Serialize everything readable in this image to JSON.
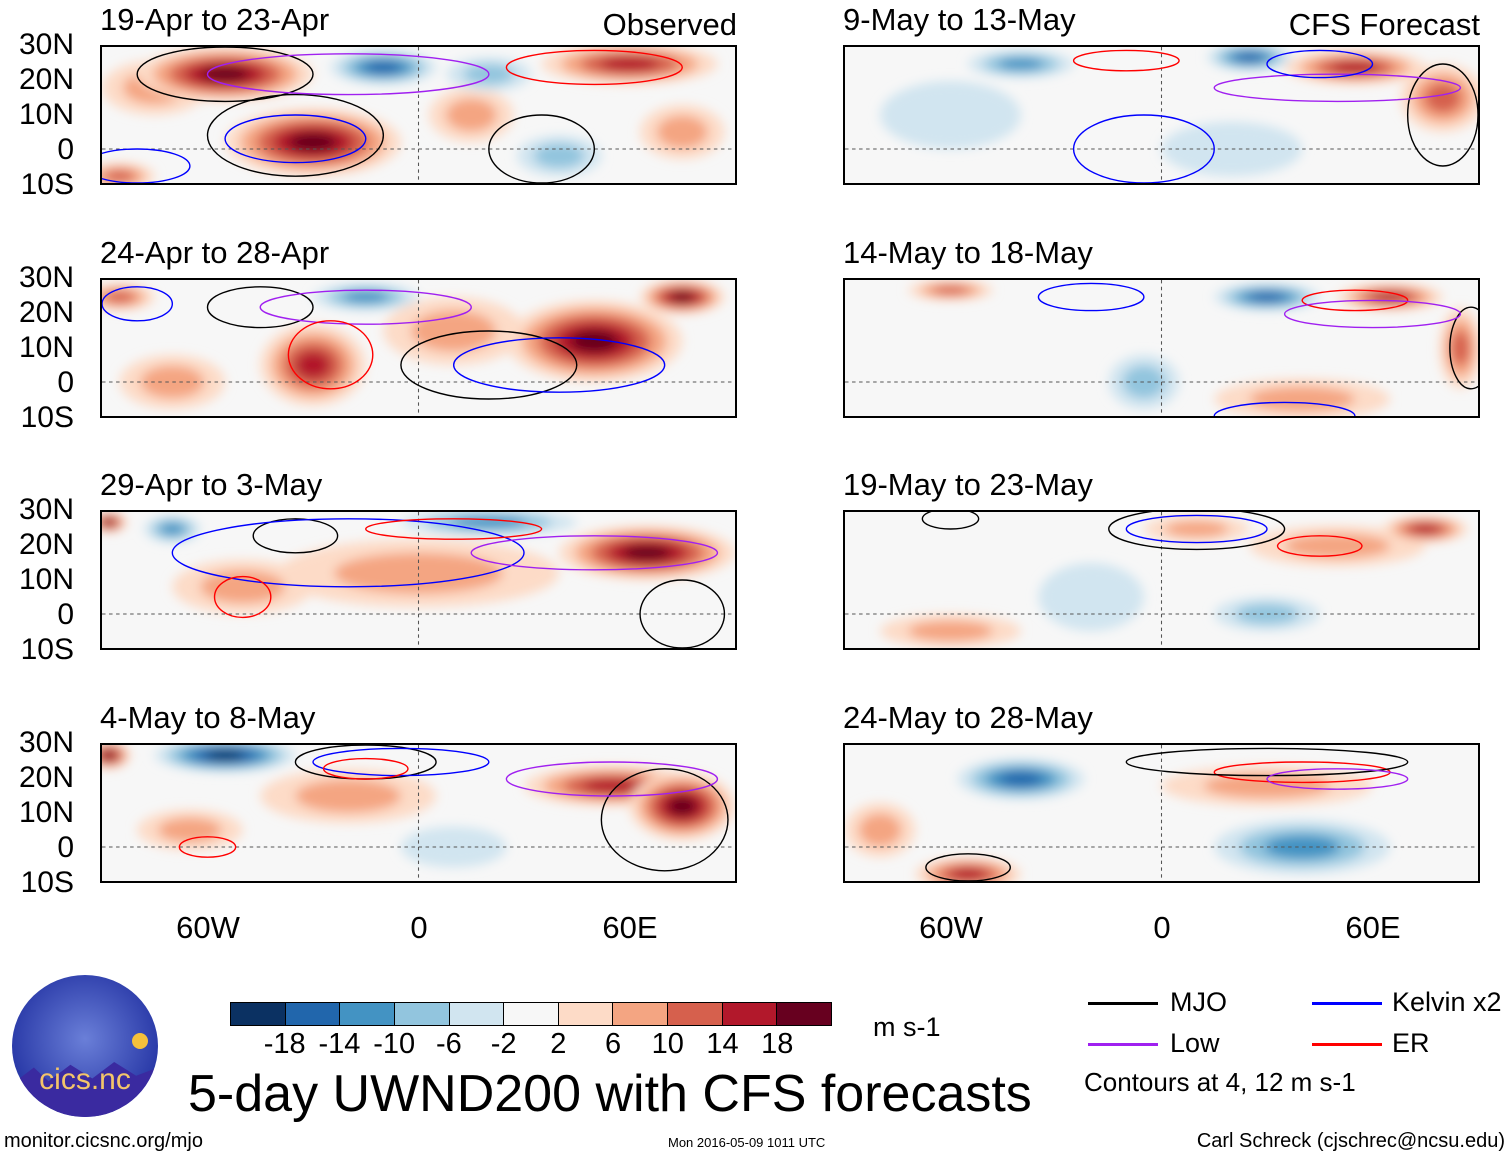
{
  "figure": {
    "title": "5-day UWND200 with CFS forecasts",
    "observed_label": "Observed",
    "forecast_label": "CFS Forecast",
    "lat_labels": [
      "30N",
      "20N",
      "10N",
      "0",
      "10S"
    ],
    "lon_labels": [
      "60W",
      "0",
      "60E"
    ],
    "lon_range": [
      -90,
      90
    ],
    "lat_range": [
      -10,
      30
    ]
  },
  "colorbar": {
    "units": "m s-1",
    "colors": [
      "#0b3162",
      "#2166ac",
      "#4393c3",
      "#92c5de",
      "#d1e5f0",
      "#f7f7f7",
      "#fddbc7",
      "#f4a582",
      "#d6604d",
      "#b2182b",
      "#67001f"
    ],
    "bounds": [
      -18,
      -14,
      -10,
      -6,
      -2,
      2,
      6,
      10,
      14,
      18
    ],
    "labels": [
      "-18",
      "-14",
      "-10",
      "-6",
      "-2",
      "2",
      "6",
      "10",
      "14",
      "18"
    ]
  },
  "legend": {
    "items": [
      {
        "label": "MJO",
        "color": "#000000"
      },
      {
        "label": "Kelvin x2",
        "color": "#0000ff"
      },
      {
        "label": "Low",
        "color": "#a020f0"
      },
      {
        "label": "ER",
        "color": "#ff0000"
      }
    ],
    "note": "Contours at 4, 12 m s-1"
  },
  "footer": {
    "url": "monitor.cicsnc.org/mjo",
    "timestamp": "Mon 2016-05-09 1011 UTC",
    "author": "Carl Schreck (cjschrec@ncsu.edu)",
    "logo_text": "cics.nc",
    "logo_ring_text": "Cooperative Institute for Climate and Satellites"
  },
  "panels": [
    {
      "title": "19-Apr to 23-Apr",
      "blobs": [
        [
          -55,
          22,
          25,
          8,
          16
        ],
        [
          -10,
          24,
          15,
          5,
          -12
        ],
        [
          -30,
          2,
          25,
          10,
          18
        ],
        [
          60,
          25,
          25,
          6,
          12
        ],
        [
          -85,
          -8,
          10,
          4,
          10
        ],
        [
          -75,
          18,
          15,
          8,
          6
        ],
        [
          15,
          10,
          12,
          8,
          6
        ],
        [
          75,
          5,
          12,
          8,
          6
        ],
        [
          40,
          -2,
          12,
          6,
          -4
        ],
        [
          20,
          22,
          12,
          5,
          -6
        ]
      ],
      "contours": [
        [
          "mjo",
          -55,
          22,
          25,
          8
        ],
        [
          "mjo",
          -35,
          4,
          25,
          12
        ],
        [
          "kelvin",
          -35,
          3,
          20,
          7
        ],
        [
          "low",
          -20,
          22,
          40,
          6
        ],
        [
          "mjo",
          35,
          0,
          15,
          10
        ],
        [
          "kelvin",
          -80,
          -5,
          15,
          5
        ],
        [
          "er",
          50,
          24,
          25,
          5
        ]
      ]
    },
    {
      "title": "24-Apr to 28-Apr",
      "blobs": [
        [
          -15,
          25,
          15,
          4,
          -10
        ],
        [
          -30,
          5,
          15,
          12,
          14
        ],
        [
          50,
          12,
          25,
          12,
          16
        ],
        [
          75,
          25,
          12,
          5,
          16
        ],
        [
          -85,
          25,
          10,
          4,
          10
        ],
        [
          10,
          15,
          20,
          10,
          6
        ],
        [
          -70,
          0,
          15,
          8,
          4
        ]
      ],
      "contours": [
        [
          "mjo",
          -45,
          22,
          15,
          6
        ],
        [
          "low",
          -15,
          22,
          30,
          5
        ],
        [
          "mjo",
          20,
          5,
          25,
          10
        ],
        [
          "kelvin",
          40,
          5,
          30,
          8
        ],
        [
          "er",
          -25,
          8,
          12,
          10
        ],
        [
          "kelvin",
          -80,
          23,
          10,
          5
        ]
      ]
    },
    {
      "title": "29-Apr to 3-May",
      "blobs": [
        [
          -88,
          27,
          5,
          3,
          16
        ],
        [
          20,
          27,
          25,
          4,
          -8
        ],
        [
          65,
          18,
          25,
          8,
          18
        ],
        [
          0,
          12,
          40,
          10,
          6
        ],
        [
          -50,
          8,
          20,
          8,
          6
        ],
        [
          -70,
          25,
          8,
          4,
          -10
        ]
      ],
      "contours": [
        [
          "mjo",
          -35,
          23,
          12,
          5
        ],
        [
          "kelvin",
          -20,
          18,
          50,
          10
        ],
        [
          "er",
          -50,
          5,
          8,
          6
        ],
        [
          "low",
          50,
          18,
          35,
          5
        ],
        [
          "mjo",
          75,
          0,
          12,
          10
        ],
        [
          "er",
          10,
          25,
          25,
          3
        ]
      ]
    },
    {
      "title": "4-May to 8-May",
      "blobs": [
        [
          -55,
          27,
          20,
          5,
          -16
        ],
        [
          -88,
          27,
          6,
          4,
          16
        ],
        [
          55,
          18,
          25,
          6,
          14
        ],
        [
          75,
          12,
          15,
          10,
          18
        ],
        [
          -20,
          15,
          25,
          8,
          6
        ],
        [
          -65,
          5,
          15,
          6,
          4
        ],
        [
          10,
          0,
          15,
          6,
          -3
        ]
      ],
      "contours": [
        [
          "mjo",
          -15,
          25,
          20,
          5
        ],
        [
          "kelvin",
          -5,
          25,
          25,
          4
        ],
        [
          "er",
          -15,
          23,
          12,
          3
        ],
        [
          "mjo",
          70,
          8,
          18,
          15
        ],
        [
          "low",
          55,
          20,
          30,
          5
        ],
        [
          "er",
          -60,
          0,
          8,
          3
        ]
      ]
    },
    {
      "title": "9-May to 13-May",
      "blobs": [
        [
          -40,
          25,
          15,
          4,
          -10
        ],
        [
          25,
          27,
          12,
          4,
          -12
        ],
        [
          55,
          24,
          20,
          5,
          12
        ],
        [
          80,
          15,
          12,
          10,
          10
        ],
        [
          -60,
          10,
          20,
          10,
          -3
        ],
        [
          20,
          0,
          20,
          8,
          -3
        ]
      ],
      "contours": [
        [
          "kelvin",
          -5,
          0,
          20,
          10
        ],
        [
          "er",
          -10,
          26,
          15,
          3
        ],
        [
          "mjo",
          80,
          10,
          10,
          15
        ],
        [
          "low",
          50,
          18,
          35,
          4
        ],
        [
          "kelvin",
          45,
          25,
          15,
          4
        ]
      ]
    },
    {
      "title": "14-May to 18-May",
      "blobs": [
        [
          -60,
          27,
          12,
          3,
          8
        ],
        [
          30,
          25,
          15,
          4,
          -12
        ],
        [
          65,
          25,
          15,
          4,
          12
        ],
        [
          -5,
          0,
          10,
          8,
          -5
        ],
        [
          85,
          10,
          6,
          12,
          10
        ],
        [
          40,
          -5,
          25,
          6,
          4
        ]
      ],
      "contours": [
        [
          "kelvin",
          -20,
          25,
          15,
          4
        ],
        [
          "er",
          55,
          24,
          15,
          3
        ],
        [
          "kelvin",
          35,
          -10,
          20,
          4
        ],
        [
          "mjo",
          88,
          10,
          6,
          12
        ],
        [
          "low",
          60,
          20,
          25,
          4
        ]
      ]
    },
    {
      "title": "19-May to 23-May",
      "blobs": [
        [
          75,
          25,
          12,
          4,
          12
        ],
        [
          50,
          20,
          25,
          6,
          6
        ],
        [
          10,
          25,
          15,
          4,
          4
        ],
        [
          -60,
          -5,
          20,
          5,
          6
        ],
        [
          30,
          0,
          15,
          5,
          -4
        ],
        [
          -20,
          5,
          15,
          10,
          -2
        ]
      ],
      "contours": [
        [
          "kelvin",
          10,
          25,
          20,
          4
        ],
        [
          "mjo",
          10,
          25,
          25,
          6
        ],
        [
          "er",
          45,
          20,
          12,
          3
        ],
        [
          "mjo",
          -60,
          28,
          8,
          3
        ]
      ]
    },
    {
      "title": "24-May to 28-May",
      "blobs": [
        [
          -40,
          20,
          18,
          6,
          -12
        ],
        [
          40,
          0,
          25,
          8,
          -8
        ],
        [
          -55,
          -8,
          15,
          5,
          12
        ],
        [
          30,
          18,
          30,
          6,
          5
        ],
        [
          -80,
          5,
          10,
          8,
          4
        ]
      ],
      "contours": [
        [
          "mjo",
          -55,
          -6,
          12,
          4
        ],
        [
          "er",
          40,
          22,
          25,
          3
        ],
        [
          "mjo",
          30,
          25,
          40,
          4
        ],
        [
          "low",
          50,
          20,
          20,
          3
        ]
      ]
    }
  ]
}
